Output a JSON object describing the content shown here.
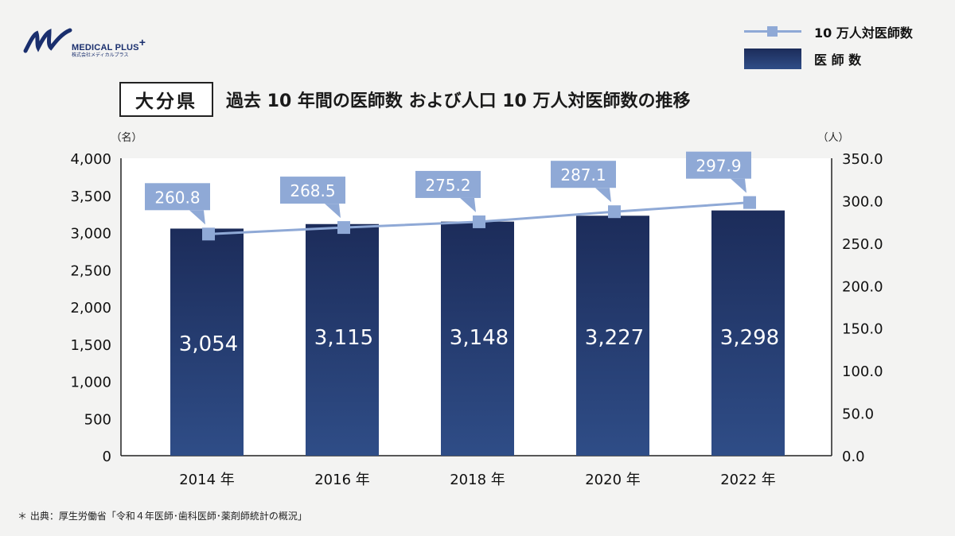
{
  "logo": {
    "name": "MEDICAL PLUS",
    "plus": "+",
    "sub": "株式会社メディカルプラス"
  },
  "legend": {
    "line_label": "10 万人対医師数",
    "bar_label": "医 師 数"
  },
  "title": {
    "prefecture": "大分県",
    "text": "過去 10 年間の医師数 および人口 10 万人対医師数の推移"
  },
  "source": "＊ 出典：厚生労働省「令和４年医師･歯科医師･薬剤師統計の概況」",
  "colors": {
    "bar_top": "#1c2c5a",
    "bar_bottom": "#2f4d87",
    "line": "#8fa9d6",
    "label_box": "#8fa9d6"
  },
  "chart_data": {
    "type": "bar",
    "categories": [
      "2014 年",
      "2016 年",
      "2018 年",
      "2020 年",
      "2022 年"
    ],
    "series": [
      {
        "name": "医 師 数",
        "type": "bar",
        "axis": "left",
        "values": [
          3054,
          3115,
          3148,
          3227,
          3298
        ],
        "labels": [
          "3,054",
          "3,115",
          "3,148",
          "3,227",
          "3,298"
        ]
      },
      {
        "name": "10 万人対医師数",
        "type": "line",
        "axis": "right",
        "values": [
          260.8,
          268.5,
          275.2,
          287.1,
          297.9
        ],
        "labels": [
          "260.8",
          "268.5",
          "275.2",
          "287.1",
          "297.9"
        ]
      }
    ],
    "y_left": {
      "unit": "（名）",
      "range": [
        0,
        4000
      ],
      "ticks": [
        "0",
        "500",
        "1,000",
        "1,500",
        "2,000",
        "2,500",
        "3,000",
        "3,500",
        "4,000"
      ],
      "tick_values": [
        0,
        500,
        1000,
        1500,
        2000,
        2500,
        3000,
        3500,
        4000
      ]
    },
    "y_right": {
      "unit": "（人）",
      "range": [
        0,
        350
      ],
      "ticks": [
        "0.0",
        "50.0",
        "100.0",
        "150.0",
        "200.0",
        "250.0",
        "300.0",
        "350.0"
      ],
      "tick_values": [
        0,
        50,
        100,
        150,
        200,
        250,
        300,
        350
      ]
    },
    "grid": false,
    "legend_position": "top-right"
  }
}
